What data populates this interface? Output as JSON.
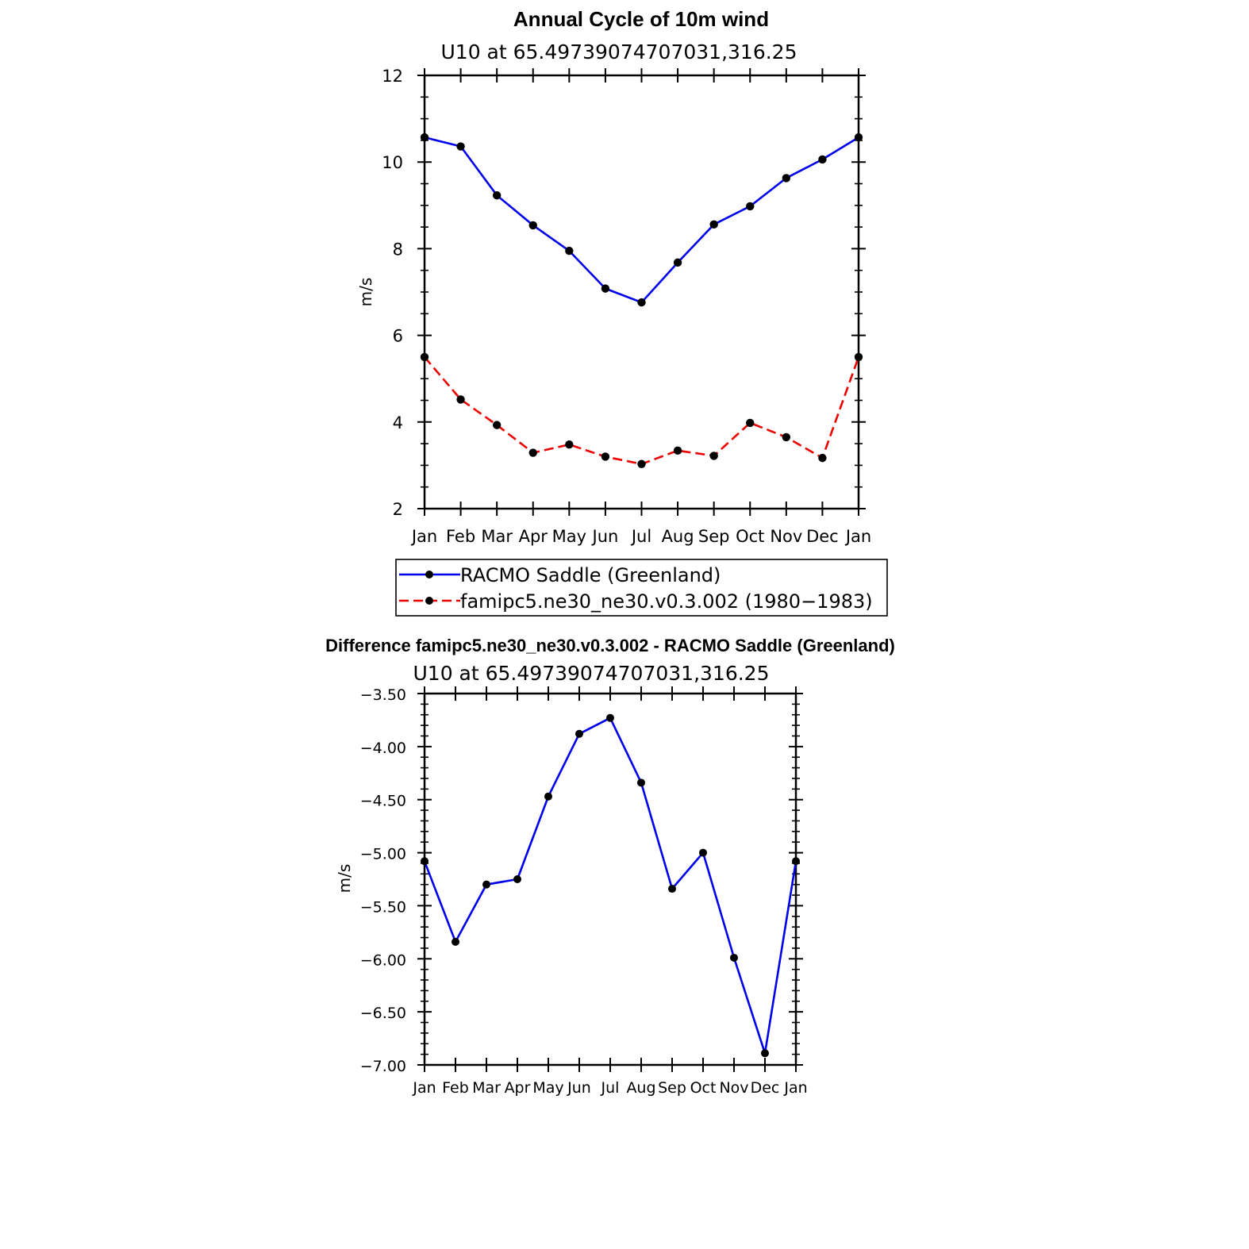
{
  "chart_data": [
    {
      "type": "line",
      "title": "Annual Cycle of 10m wind",
      "subtitle": "U10 at 65.49739074707031,316.25",
      "xlabel": "",
      "ylabel": "m/s",
      "categories": [
        "Jan",
        "Feb",
        "Mar",
        "Apr",
        "May",
        "Jun",
        "Jul",
        "Aug",
        "Sep",
        "Oct",
        "Nov",
        "Dec",
        "Jan"
      ],
      "ylim": [
        2,
        12
      ],
      "yticks": [
        "2",
        "4",
        "6",
        "8",
        "10",
        "12"
      ],
      "series": [
        {
          "name": "RACMO Saddle (Greenland)",
          "color": "#0000ee",
          "dash": "solid",
          "values": [
            10.57,
            10.36,
            9.23,
            8.54,
            7.95,
            7.08,
            6.76,
            7.68,
            8.56,
            8.98,
            9.63,
            10.06,
            10.57
          ]
        },
        {
          "name": "famipc5.ne30_ne30.v0.3.002 (1980−1983)",
          "color": "#ee0000",
          "dash": "dashed",
          "values": [
            5.5,
            4.52,
            3.93,
            3.29,
            3.48,
            3.2,
            3.03,
            3.34,
            3.22,
            3.98,
            3.65,
            3.17,
            5.5
          ]
        }
      ],
      "legend": "bottom"
    },
    {
      "type": "line",
      "title": "Difference famipc5.ne30_ne30.v0.3.002 - RACMO Saddle (Greenland)",
      "subtitle": "U10 at 65.49739074707031,316.25",
      "xlabel": "",
      "ylabel": "m/s",
      "categories": [
        "Jan",
        "Feb",
        "Mar",
        "Apr",
        "May",
        "Jun",
        "Jul",
        "Aug",
        "Sep",
        "Oct",
        "Nov",
        "Dec",
        "Jan"
      ],
      "ylim": [
        -7.0,
        -3.5
      ],
      "yticks": [
        "−7.00",
        "−6.50",
        "−6.00",
        "−5.50",
        "−5.00",
        "−4.50",
        "−4.00",
        "−3.50"
      ],
      "series": [
        {
          "name": "Difference",
          "color": "#0000ee",
          "dash": "solid",
          "values": [
            -5.08,
            -5.84,
            -5.3,
            -5.25,
            -4.47,
            -3.88,
            -3.73,
            -4.34,
            -5.34,
            -5.0,
            -5.99,
            -6.89,
            -5.08
          ]
        }
      ]
    }
  ]
}
